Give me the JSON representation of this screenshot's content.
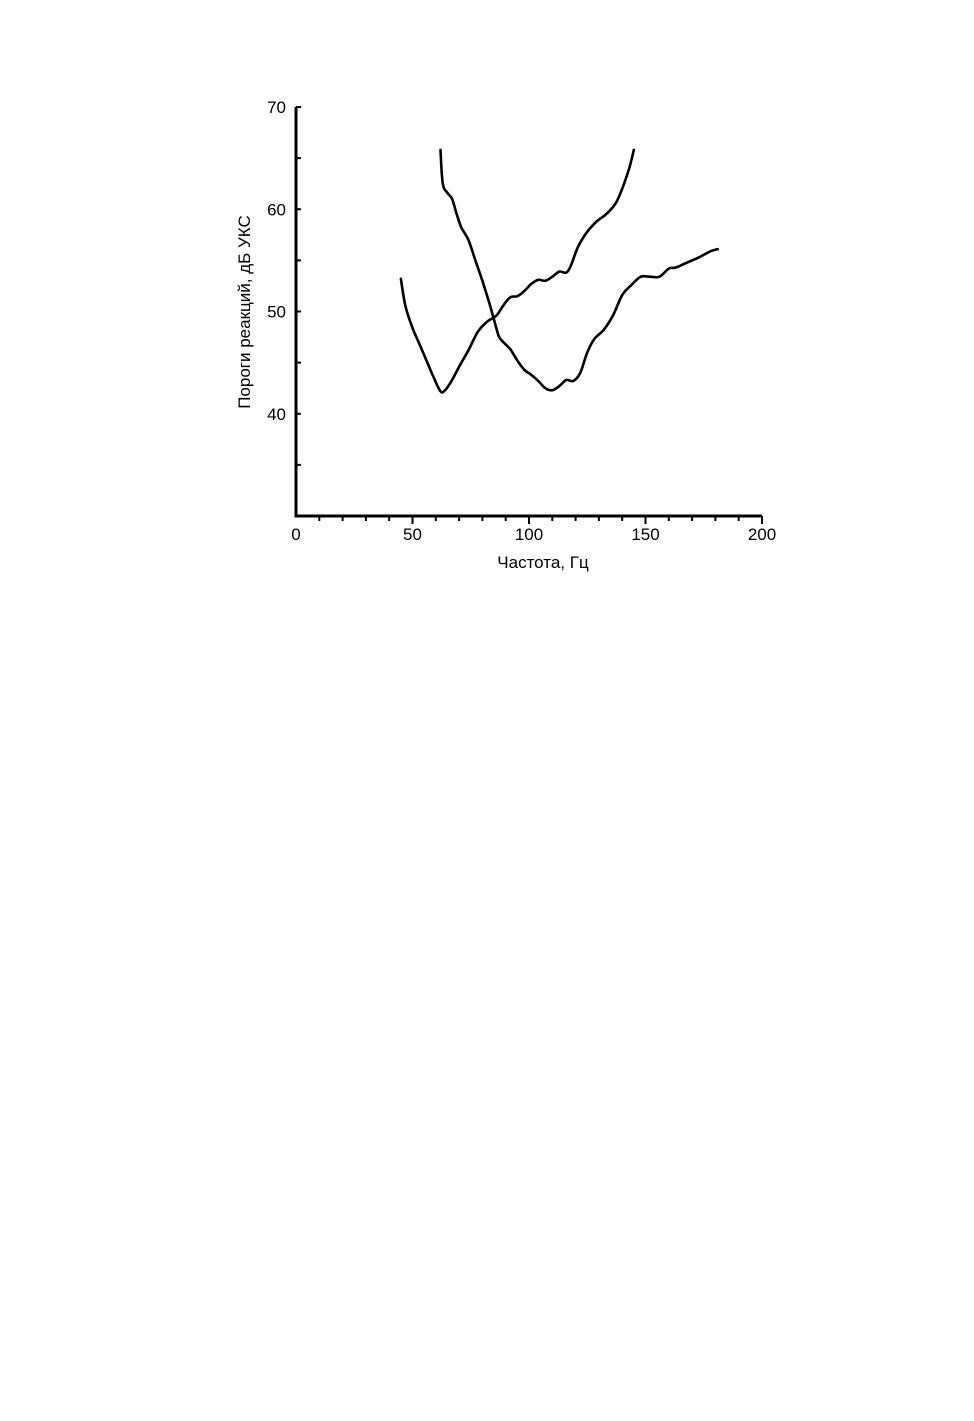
{
  "chart_data": {
    "type": "line",
    "title": "",
    "xlabel": "Частота, Гц",
    "ylabel": "Пороги реакций, дБ УКС",
    "xlim": [
      0,
      200
    ],
    "ylim": [
      30,
      70
    ],
    "x_ticks": [
      0,
      50,
      100,
      150,
      200
    ],
    "y_ticks": [
      40,
      50,
      60,
      70
    ],
    "x_minor_step": 10,
    "y_minor_step": 5,
    "grid": false,
    "legend": "none",
    "line_color": "#000000",
    "series": [
      {
        "points": [
          [
            45,
            53.2
          ],
          [
            47,
            50.5
          ],
          [
            50,
            48.4
          ],
          [
            53,
            46.8
          ],
          [
            56,
            45.2
          ],
          [
            59,
            43.6
          ],
          [
            62,
            42.2
          ],
          [
            64,
            42.3
          ],
          [
            67,
            43.3
          ],
          [
            70,
            44.6
          ],
          [
            74,
            46.2
          ],
          [
            78,
            48.0
          ],
          [
            82,
            49.0
          ],
          [
            86,
            49.6
          ],
          [
            89,
            50.6
          ],
          [
            92,
            51.4
          ],
          [
            95,
            51.5
          ],
          [
            98,
            52.0
          ],
          [
            101,
            52.7
          ],
          [
            104,
            53.1
          ],
          [
            107,
            53.0
          ],
          [
            110,
            53.4
          ],
          [
            113,
            53.9
          ],
          [
            116,
            53.8
          ],
          [
            118,
            54.5
          ],
          [
            121,
            56.3
          ],
          [
            125,
            57.8
          ],
          [
            129,
            58.8
          ],
          [
            133,
            59.5
          ],
          [
            137,
            60.5
          ],
          [
            140,
            62.0
          ],
          [
            143,
            64.0
          ],
          [
            145,
            65.8
          ]
        ]
      },
      {
        "points": [
          [
            62,
            65.8
          ],
          [
            63,
            62.5
          ],
          [
            65,
            61.6
          ],
          [
            67,
            61.0
          ],
          [
            69,
            59.5
          ],
          [
            71,
            58.2
          ],
          [
            74,
            57.0
          ],
          [
            77,
            55.0
          ],
          [
            80,
            53.0
          ],
          [
            83,
            50.8
          ],
          [
            85,
            49.2
          ],
          [
            87,
            47.6
          ],
          [
            89,
            47.0
          ],
          [
            92,
            46.3
          ],
          [
            95,
            45.2
          ],
          [
            98,
            44.3
          ],
          [
            101,
            43.8
          ],
          [
            104,
            43.2
          ],
          [
            107,
            42.5
          ],
          [
            110,
            42.3
          ],
          [
            113,
            42.7
          ],
          [
            116,
            43.3
          ],
          [
            119,
            43.2
          ],
          [
            122,
            44.0
          ],
          [
            125,
            46.0
          ],
          [
            128,
            47.3
          ],
          [
            132,
            48.2
          ],
          [
            136,
            49.6
          ],
          [
            140,
            51.6
          ],
          [
            144,
            52.6
          ],
          [
            148,
            53.4
          ],
          [
            152,
            53.4
          ],
          [
            156,
            53.4
          ],
          [
            160,
            54.2
          ],
          [
            163,
            54.3
          ],
          [
            168,
            54.8
          ],
          [
            173,
            55.3
          ],
          [
            178,
            55.9
          ],
          [
            181,
            56.1
          ]
        ]
      }
    ]
  }
}
